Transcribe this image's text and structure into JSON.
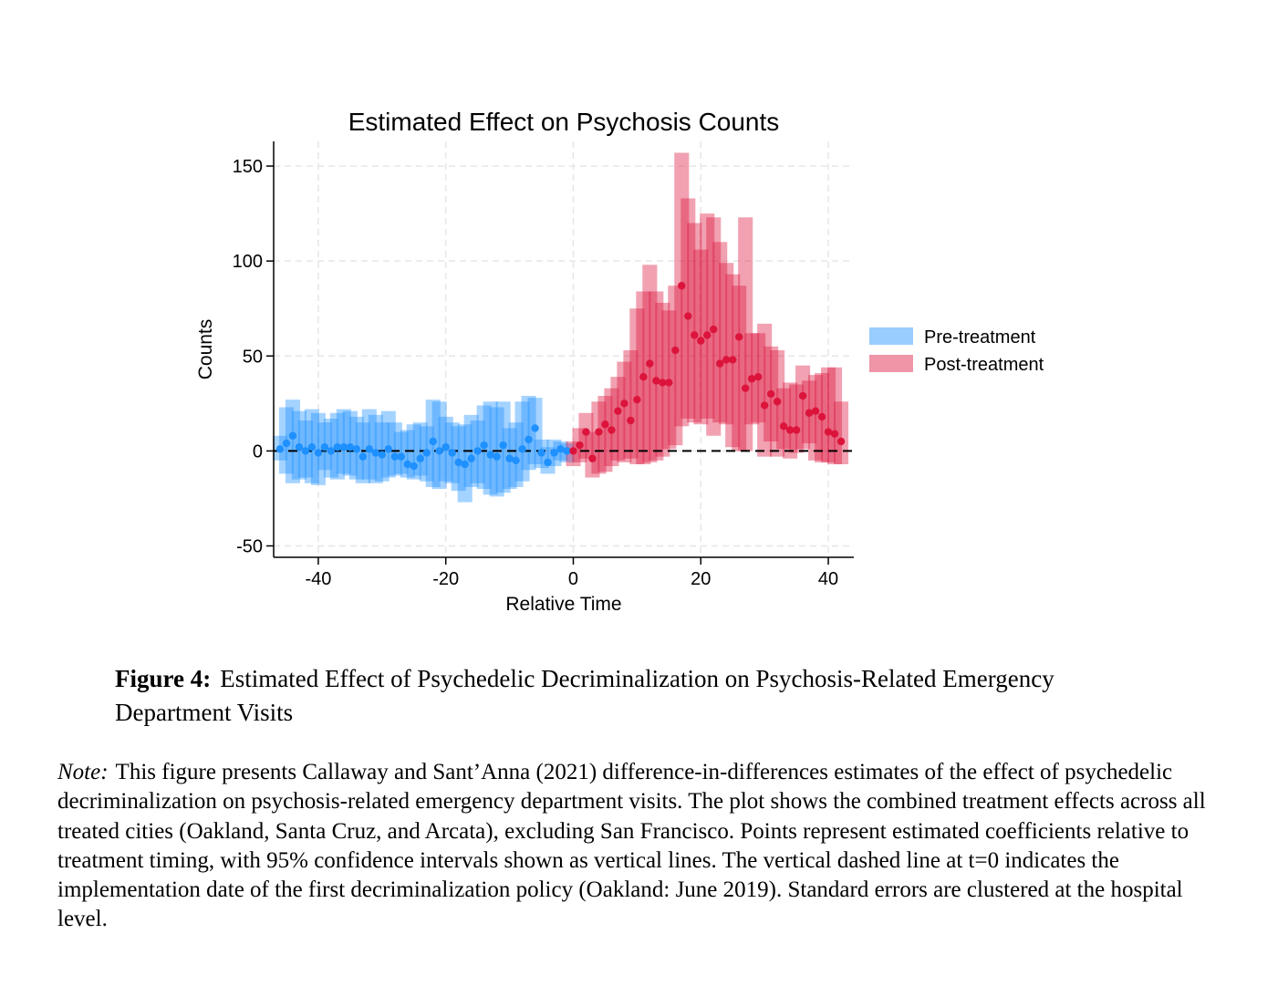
{
  "figure": {
    "label": "Figure 4:",
    "caption": "Estimated Effect of Psychedelic Decriminalization on Psychosis-Related Emergency Department Visits",
    "note_label": "Note:",
    "note": "This figure presents Callaway and Sant’Anna (2021) difference-in-differences estimates of the effect of psychedelic decriminalization on psychosis-related emergency department visits. The plot shows the combined treatment effects across all treated cities (Oakland, Santa Cruz, and Arcata), excluding San Francisco. Points represent estimated coefficients relative to treatment timing, with 95% confidence intervals shown as vertical lines. The vertical dashed line at t=0 indicates the implementation date of the first decriminalization policy (Oakland: June 2019). Standard errors are clustered at the hospital level."
  },
  "chart_data": {
    "type": "scatter",
    "title": "Estimated Effect on Psychosis Counts",
    "xlabel": "Relative Time",
    "ylabel": "Counts",
    "xlim": [
      -47,
      44
    ],
    "ylim": [
      -56,
      163
    ],
    "xticks": [
      -40,
      -20,
      0,
      20,
      40
    ],
    "yticks": [
      -50,
      0,
      50,
      100,
      150
    ],
    "grid": true,
    "reference_line": {
      "y": 0,
      "style": "dashed"
    },
    "legend_position": "right",
    "colors": {
      "pre": "#1e90ff",
      "post": "#dc143c"
    },
    "series": [
      {
        "name": "Pre-treatment",
        "x": [
          -46,
          -45,
          -44,
          -43,
          -42,
          -41,
          -40,
          -39,
          -38,
          -37,
          -36,
          -35,
          -34,
          -33,
          -32,
          -31,
          -30,
          -29,
          -28,
          -27,
          -26,
          -25,
          -24,
          -23,
          -22,
          -21,
          -20,
          -19,
          -18,
          -17,
          -16,
          -15,
          -14,
          -13,
          -12,
          -11,
          -10,
          -9,
          -8,
          -7,
          -6,
          -5,
          -4,
          -3,
          -2,
          -1
        ],
        "y": [
          1,
          4,
          8,
          2,
          0,
          2,
          -1,
          2,
          0,
          2,
          2,
          2,
          1,
          -3,
          1,
          -1,
          -2,
          1,
          -3,
          -3,
          -7,
          -8,
          -4,
          -1,
          5,
          0,
          2,
          -1,
          -6,
          -7,
          -4,
          0,
          3,
          -2,
          -3,
          3,
          -4,
          -5,
          1,
          6,
          12,
          -1,
          -6,
          -1,
          1,
          0
        ],
        "ci_low": [
          -5,
          -12,
          -17,
          -15,
          -14,
          -17,
          -18,
          -10,
          -14,
          -15,
          -12,
          -13,
          -15,
          -17,
          -15,
          -17,
          -16,
          -14,
          -13,
          -12,
          -14,
          -15,
          -13,
          -16,
          -19,
          -20,
          -16,
          -17,
          -21,
          -27,
          -19,
          -17,
          -20,
          -23,
          -24,
          -22,
          -20,
          -19,
          -16,
          -10,
          -7,
          -9,
          -12,
          -8,
          -5,
          -6
        ],
        "ci_high": [
          8,
          23,
          27,
          21,
          16,
          22,
          20,
          15,
          17,
          20,
          22,
          21,
          18,
          15,
          22,
          19,
          15,
          21,
          15,
          10,
          11,
          14,
          15,
          13,
          27,
          26,
          18,
          15,
          13,
          14,
          19,
          16,
          24,
          26,
          23,
          26,
          12,
          15,
          26,
          29,
          28,
          6,
          2,
          6,
          5,
          4
        ]
      },
      {
        "name": "Post-treatment",
        "x": [
          0,
          1,
          2,
          3,
          4,
          5,
          6,
          7,
          8,
          9,
          10,
          11,
          12,
          13,
          14,
          15,
          16,
          17,
          18,
          19,
          20,
          21,
          22,
          23,
          24,
          25,
          26,
          27,
          28,
          29,
          30,
          31,
          32,
          33,
          34,
          35,
          36,
          37,
          38,
          39,
          40,
          41,
          42
        ],
        "y": [
          0,
          3,
          10,
          -4,
          10,
          14,
          11,
          21,
          25,
          16,
          27,
          39,
          46,
          37,
          36,
          36,
          53,
          87,
          71,
          61,
          58,
          61,
          64,
          46,
          48,
          48,
          60,
          33,
          38,
          39,
          24,
          30,
          26,
          13,
          11,
          11,
          29,
          20,
          21,
          18,
          10,
          9,
          5
        ],
        "ci_low": [
          -8,
          -6,
          -4,
          -14,
          -12,
          -11,
          -8,
          -5,
          -6,
          -4,
          -7,
          -7,
          -6,
          -5,
          -3,
          1,
          3,
          13,
          17,
          15,
          14,
          17,
          8,
          15,
          14,
          2,
          0,
          0,
          14,
          15,
          -3,
          5,
          -3,
          1,
          -4,
          -1,
          1,
          4,
          -5,
          -6,
          -6,
          -7,
          -7
        ],
        "ci_high": [
          5,
          12,
          20,
          10,
          26,
          29,
          33,
          39,
          47,
          53,
          75,
          84,
          98,
          84,
          78,
          74,
          87,
          157,
          133,
          120,
          106,
          125,
          123,
          110,
          99,
          93,
          87,
          123,
          62,
          62,
          67,
          55,
          53,
          33,
          36,
          35,
          45,
          37,
          40,
          41,
          44,
          44,
          26
        ]
      }
    ]
  }
}
